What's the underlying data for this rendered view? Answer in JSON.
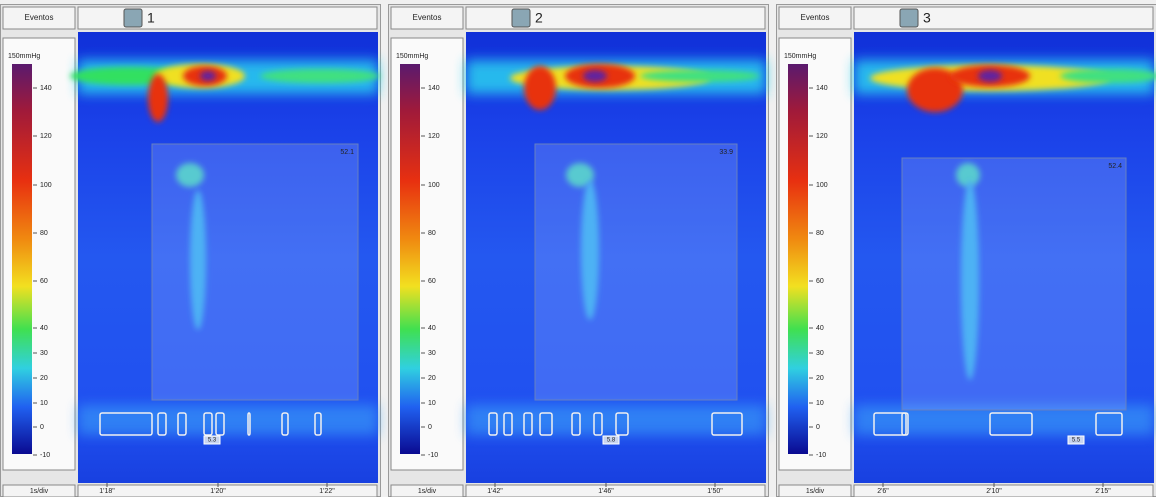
{
  "panels": [
    {
      "events_label": "Eventos",
      "number": "1",
      "unit": "150mmHg",
      "scale_ticks": [
        "140",
        "120",
        "100",
        "80",
        "60",
        "40",
        "30",
        "20",
        "10",
        "0",
        "-10"
      ],
      "box_value": "52.1",
      "marker_value": "5.3",
      "div_label": "1s/div",
      "time_labels": [
        "1'18\"",
        "1'20\"",
        "1'22\""
      ]
    },
    {
      "events_label": "Eventos",
      "number": "2",
      "unit": "150mmHg",
      "scale_ticks": [
        "140",
        "120",
        "100",
        "80",
        "60",
        "40",
        "30",
        "20",
        "10",
        "0",
        "-10"
      ],
      "box_value": "33.9",
      "marker_value": "5.8",
      "div_label": "1s/div",
      "time_labels": [
        "1'42\"",
        "1'46\"",
        "1'50\""
      ]
    },
    {
      "events_label": "Eventos",
      "number": "3",
      "unit": "150mmHg",
      "scale_ticks": [
        "140",
        "120",
        "100",
        "80",
        "60",
        "40",
        "30",
        "20",
        "10",
        "0",
        "-10"
      ],
      "box_value": "52.4",
      "marker_value": "5.5",
      "div_label": "1s/div",
      "time_labels": [
        "2'6\"",
        "2'10\"",
        "2'15\""
      ]
    }
  ]
}
